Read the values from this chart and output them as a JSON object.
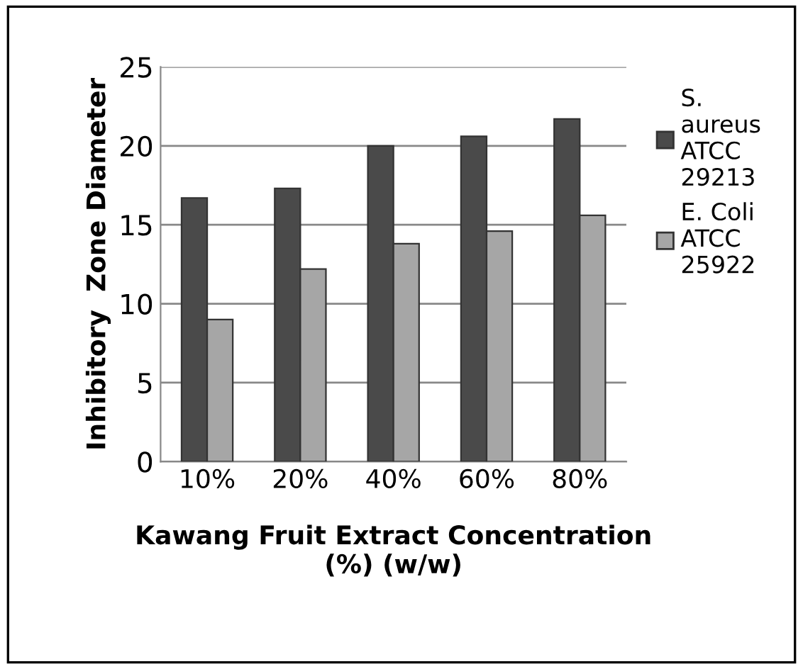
{
  "chart_data": {
    "type": "bar",
    "xlabel": "Kawang Fruit Extract Concentration (%) (w/w)",
    "ylabel": "Inhibitory  Zone Diameter",
    "categories": [
      "10%",
      "20%",
      "40%",
      "60%",
      "80%"
    ],
    "series": [
      {
        "name": "S. aureus ATCC 29213",
        "color": "#4a4a4a",
        "values": [
          16.7,
          17.3,
          20.0,
          20.6,
          21.7
        ]
      },
      {
        "name": "E. Coli ATCC 25922",
        "color": "#a6a6a6",
        "values": [
          9.0,
          12.2,
          13.8,
          14.6,
          15.6
        ]
      }
    ],
    "ylim": [
      0,
      25
    ],
    "yticks": [
      0,
      5,
      10,
      15,
      20,
      25
    ],
    "grid": "y",
    "legend": "right"
  }
}
